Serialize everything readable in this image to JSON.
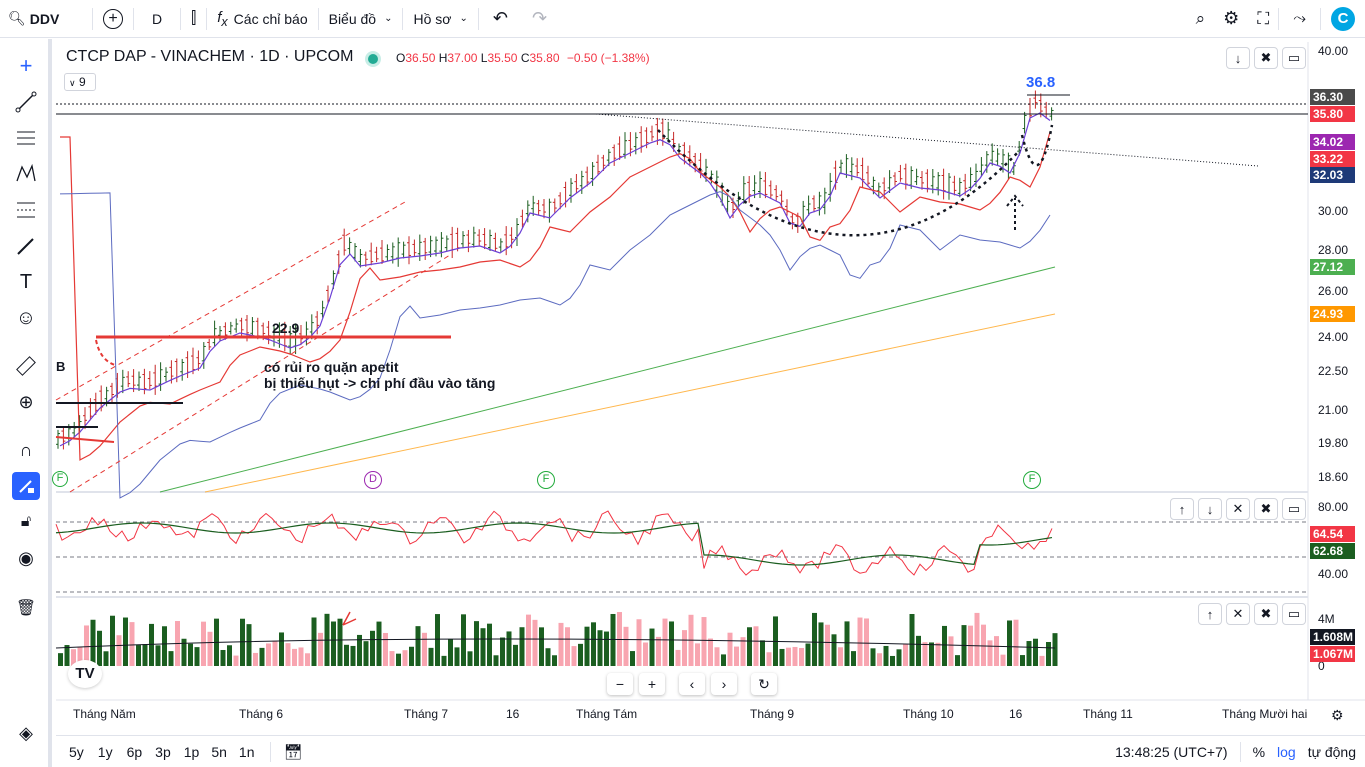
{
  "topbar": {
    "symbol": "DDV",
    "interval": "D",
    "indicators": "Các chỉ báo",
    "chart_type": "Biểu đồ",
    "profile": "Hồ sơ"
  },
  "legend": {
    "title": "CTCP DAP - VINACHEM · 1D · UPCOM",
    "o_label": "O",
    "o": "36.50",
    "h_label": "H",
    "h": "37.00",
    "l_label": "L",
    "l": "35.50",
    "c_label": "C",
    "c": "35.80",
    "change": "−0.50 (−1.38%)",
    "collapse_count": "9"
  },
  "price_axis": [
    "40.00",
    "30.00",
    "28.00",
    "26.00",
    "24.00",
    "22.50",
    "21.00",
    "19.80",
    "18.60"
  ],
  "price_tags": [
    {
      "value": "36.30",
      "color": "#4a4a4a"
    },
    {
      "value": "35.80",
      "color": "#f23645"
    },
    {
      "value": "34.02",
      "color": "#9c27b0"
    },
    {
      "value": "33.22",
      "color": "#f23645"
    },
    {
      "value": "32.03",
      "color": "#1e3a78"
    },
    {
      "value": "27.12",
      "color": "#4caf50"
    },
    {
      "value": "24.93",
      "color": "#ff9800"
    }
  ],
  "annotations": {
    "high_label": "36.8",
    "level_label": "22.9",
    "note_line1": "có rủi ro quặn apetit",
    "note_line2": "bị thiếu hụt -> chi phí đầu vào tăng",
    "left_label": "B"
  },
  "event_markers": [
    "F",
    "D",
    "F",
    "F"
  ],
  "rsi_axis": [
    "80.00",
    "40.00"
  ],
  "rsi_tags": [
    {
      "value": "64.54",
      "color": "#f23645"
    },
    {
      "value": "62.68",
      "color": "#1b5e20"
    }
  ],
  "volume_axis": [
    "4M",
    "0"
  ],
  "volume_tags": [
    {
      "value": "1.608M",
      "color": "#131722"
    },
    {
      "value": "1.067M",
      "color": "#f23645"
    }
  ],
  "time_axis": [
    "Tháng Năm",
    "Tháng 6",
    "Tháng 7",
    "16",
    "Tháng Tám",
    "Tháng 9",
    "Tháng 10",
    "16",
    "Tháng 11",
    "Tháng Mười hai"
  ],
  "ranges": [
    "5y",
    "1y",
    "6p",
    "3p",
    "1p",
    "5n",
    "1n"
  ],
  "bottom": {
    "clock": "13:48:25 (UTC+7)",
    "percent": "%",
    "log": "log",
    "auto": "tự động"
  },
  "chart_data": {
    "type": "candlestick",
    "title": "CTCP DAP - VINACHEM · 1D · UPCOM",
    "ylim": [
      18.0,
      40.0
    ],
    "last": {
      "open": 36.5,
      "high": 37.0,
      "low": 35.5,
      "close": 35.8
    },
    "ma_values": {
      "ma_a": 34.02,
      "ma_b": 33.22,
      "ma_c": 32.03,
      "ma_d": 27.12,
      "ma_e": 24.93
    },
    "rsi": [
      64.54,
      62.68
    ],
    "volume": [
      1.608,
      1.067
    ]
  }
}
